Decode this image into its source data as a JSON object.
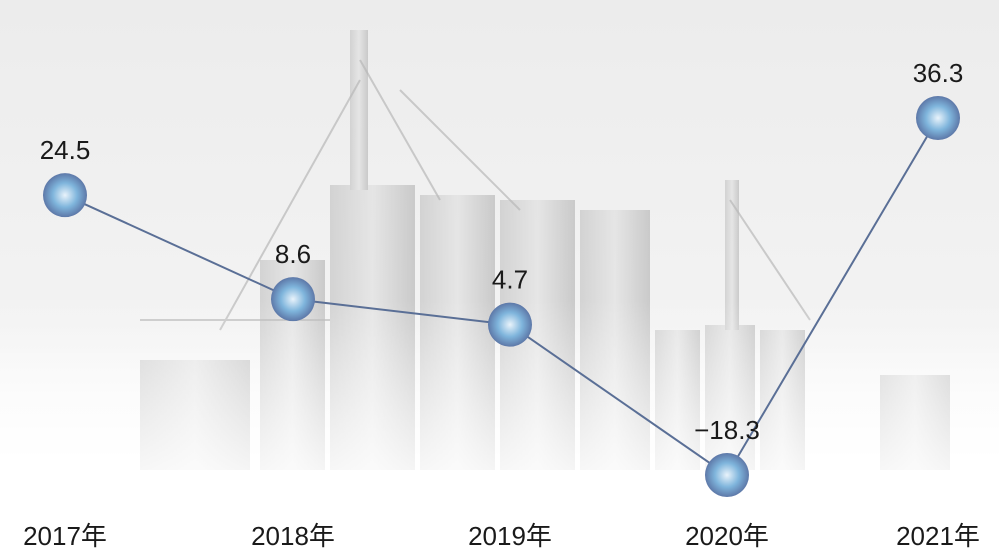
{
  "chart_data": {
    "type": "line",
    "categories": [
      "2017年",
      "2018年",
      "2019年",
      "2020年",
      "2021年"
    ],
    "series": [
      {
        "color": "#5a6f96",
        "values": [
          24.5,
          8.6,
          4.7,
          -18.3,
          36.3
        ],
        "value_labels": [
          "24.5",
          "8.6",
          "4.7",
          "−18.3",
          "36.3"
        ]
      }
    ]
  }
}
